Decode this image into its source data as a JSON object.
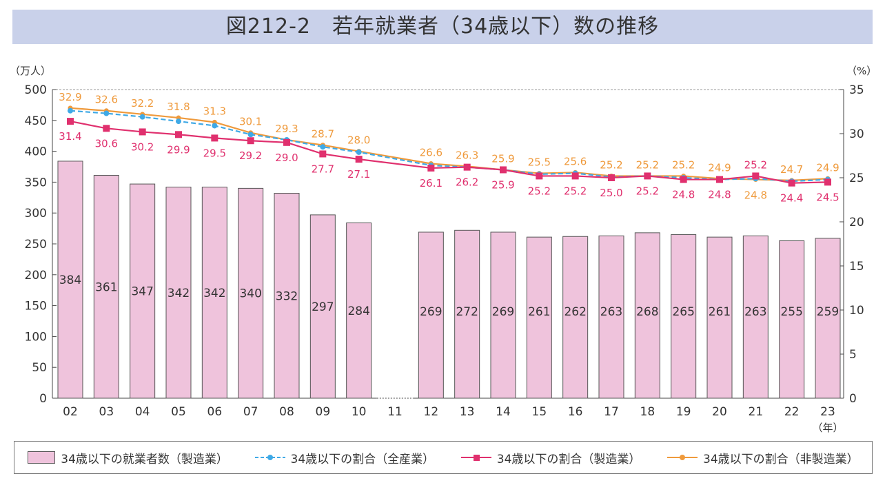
{
  "title": "図212-2　若年就業者（34歳以下）数の推移",
  "chart_data": {
    "type": "bar",
    "title": "図212-2　若年就業者（34歳以下）数の推移",
    "ylabel": "（万人）",
    "y2label": "（%）",
    "xlabel": "（年）",
    "ylim": [
      0,
      500
    ],
    "y2lim": [
      0,
      35
    ],
    "yticks": [
      "0",
      "50",
      "100",
      "150",
      "200",
      "250",
      "300",
      "350",
      "400",
      "450",
      "500"
    ],
    "y2ticks": [
      "0",
      "5",
      "10",
      "15",
      "20",
      "25",
      "30",
      "35"
    ],
    "categories": [
      "02",
      "03",
      "04",
      "05",
      "06",
      "07",
      "08",
      "09",
      "10",
      "11",
      "12",
      "13",
      "14",
      "15",
      "16",
      "17",
      "18",
      "19",
      "20",
      "21",
      "22",
      "23"
    ],
    "series": [
      {
        "name": "34歳以下の就業者数（製造業）",
        "type": "bar",
        "color": "#efc3dc",
        "values": [
          384,
          361,
          347,
          342,
          342,
          340,
          332,
          297,
          284,
          null,
          269,
          272,
          269,
          261,
          262,
          263,
          268,
          265,
          261,
          263,
          255,
          259
        ]
      },
      {
        "name": "34歳以下の割合（全産業）",
        "type": "line",
        "color": "#3fa9e6",
        "dashed": true,
        "values": [
          32.6,
          32.3,
          31.9,
          31.4,
          30.9,
          29.9,
          29.3,
          28.5,
          27.9,
          null,
          26.4,
          26.2,
          25.9,
          25.4,
          25.5,
          25.1,
          25.2,
          25.0,
          24.8,
          24.9,
          24.6,
          24.8
        ]
      },
      {
        "name": "34歳以下の割合（製造業）",
        "type": "line",
        "color": "#e0306e",
        "values": [
          31.4,
          30.6,
          30.2,
          29.9,
          29.5,
          29.2,
          29.0,
          27.7,
          27.1,
          null,
          26.1,
          26.2,
          25.9,
          25.2,
          25.2,
          25.0,
          25.2,
          24.8,
          24.8,
          25.2,
          24.4,
          24.5
        ],
        "labels": [
          "31.4",
          "30.6",
          "30.2",
          "29.9",
          "29.5",
          "29.2",
          "29.0",
          "27.7",
          "27.1",
          "",
          "26.1",
          "26.2",
          "25.9",
          "25.2",
          "25.2",
          "25.0",
          "25.2",
          "24.8",
          "24.8",
          "25.2",
          "24.4",
          "24.5"
        ]
      },
      {
        "name": "34歳以下の割合（非製造業）",
        "type": "line",
        "color": "#ef9a3c",
        "values": [
          32.9,
          32.6,
          32.2,
          31.8,
          31.3,
          30.1,
          29.3,
          28.7,
          28.0,
          null,
          26.6,
          26.3,
          25.9,
          25.5,
          25.6,
          25.2,
          25.2,
          25.2,
          24.9,
          24.8,
          24.7,
          24.9
        ],
        "labels": [
          "32.9",
          "32.6",
          "32.2",
          "31.8",
          "31.3",
          "30.1",
          "29.3",
          "28.7",
          "28.0",
          "",
          "26.6",
          "26.3",
          "25.9",
          "25.5",
          "25.6",
          "25.2",
          "25.2",
          "25.2",
          "24.9",
          "24.8",
          "24.7",
          "24.9"
        ]
      }
    ],
    "legend_position": "bottom"
  }
}
